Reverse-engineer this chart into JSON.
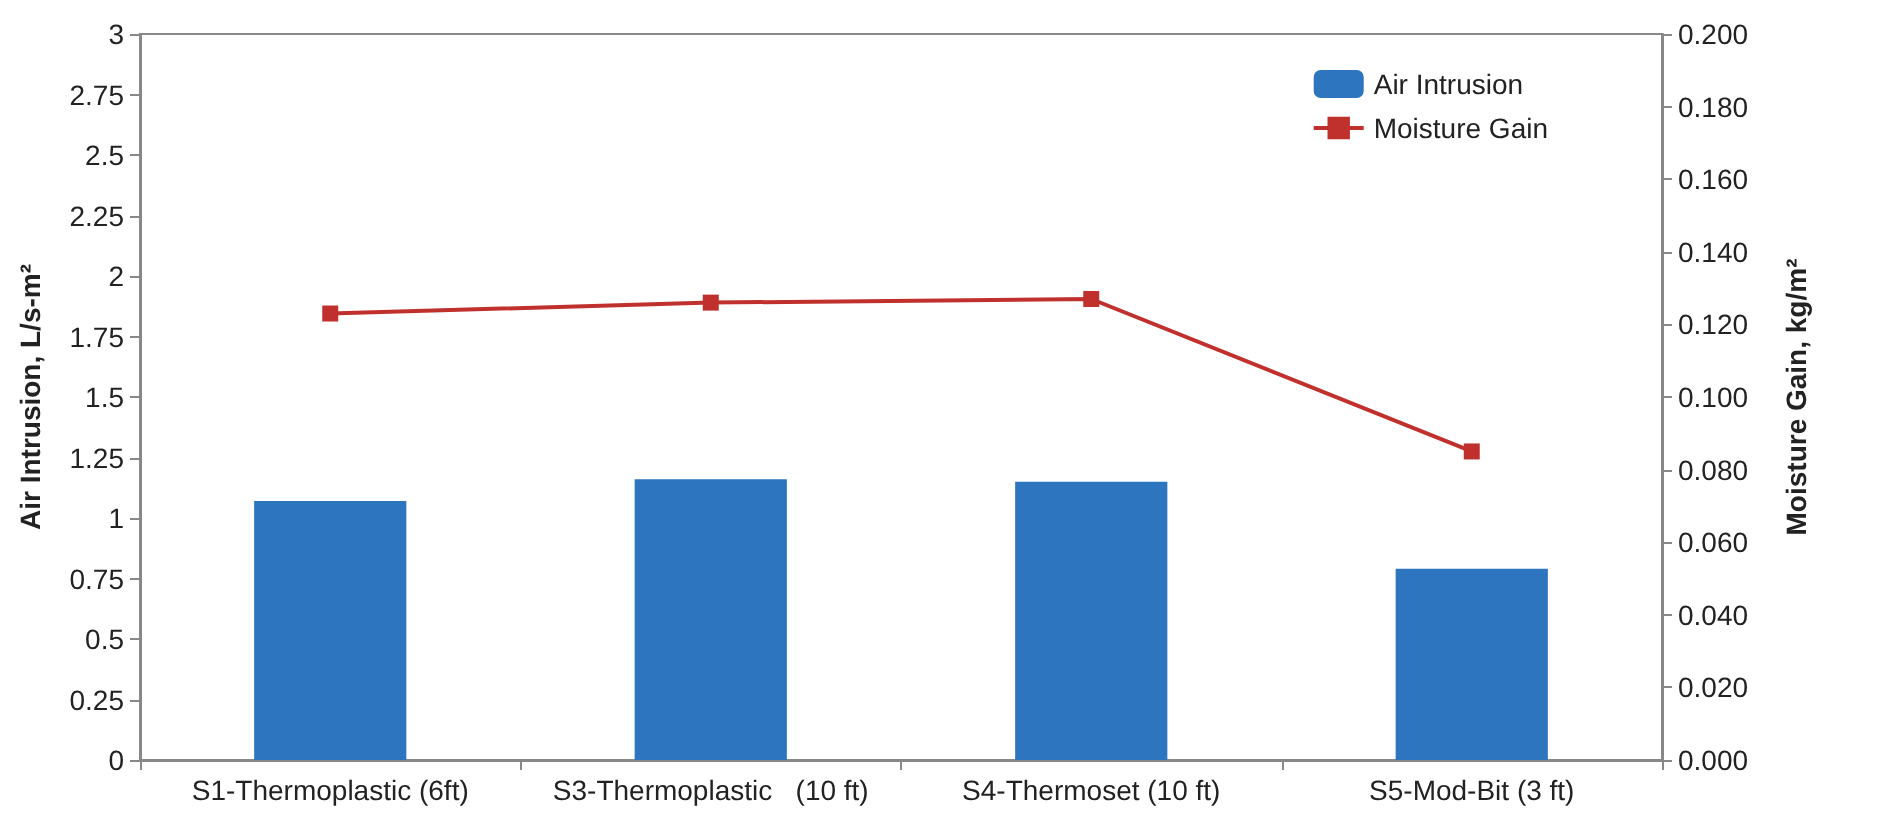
{
  "chart_data": {
    "type": "bar",
    "categories": [
      "S1-Thermoplastic (6ft)",
      "S3-Thermoplastic   (10 ft)",
      "S4-Thermoset (10 ft)",
      "S5-Mod-Bit (3 ft)"
    ],
    "series": [
      {
        "name": "Air Intrusion",
        "color": "#2e75c0",
        "values": [
          1.07,
          1.16,
          1.15,
          0.79
        ]
      },
      {
        "name": "Moisture Gain",
        "type": "line",
        "axis": "y2",
        "color": "#c0312d",
        "marker": "square",
        "values": [
          0.123,
          0.126,
          0.127,
          0.085
        ]
      }
    ],
    "ylabel": "Air Intrusion, L/s-m²",
    "y2label": "Moisture Gain, kg/m²",
    "ylim": [
      0,
      3
    ],
    "yticks": [
      0,
      0.25,
      0.5,
      0.75,
      1,
      1.25,
      1.5,
      1.75,
      2,
      2.25,
      2.5,
      2.75,
      3
    ],
    "y2lim": [
      0,
      0.2
    ],
    "y2ticks": [
      {
        "value": 0,
        "label": "0.000"
      },
      {
        "value": 0.02,
        "label": "0.020"
      },
      {
        "value": 0.04,
        "label": "0.040"
      },
      {
        "value": 0.06,
        "label": "0.060"
      },
      {
        "value": 0.08,
        "label": "0.080"
      },
      {
        "value": 0.1,
        "label": "0.100"
      },
      {
        "value": 0.12,
        "label": "0.120"
      },
      {
        "value": 0.14,
        "label": "0.140"
      },
      {
        "value": 0.16,
        "label": "0.160"
      },
      {
        "value": 0.18,
        "label": "0.180"
      },
      {
        "value": 0.2,
        "label": "0.200"
      }
    ],
    "legend": "top right",
    "grid": false
  }
}
